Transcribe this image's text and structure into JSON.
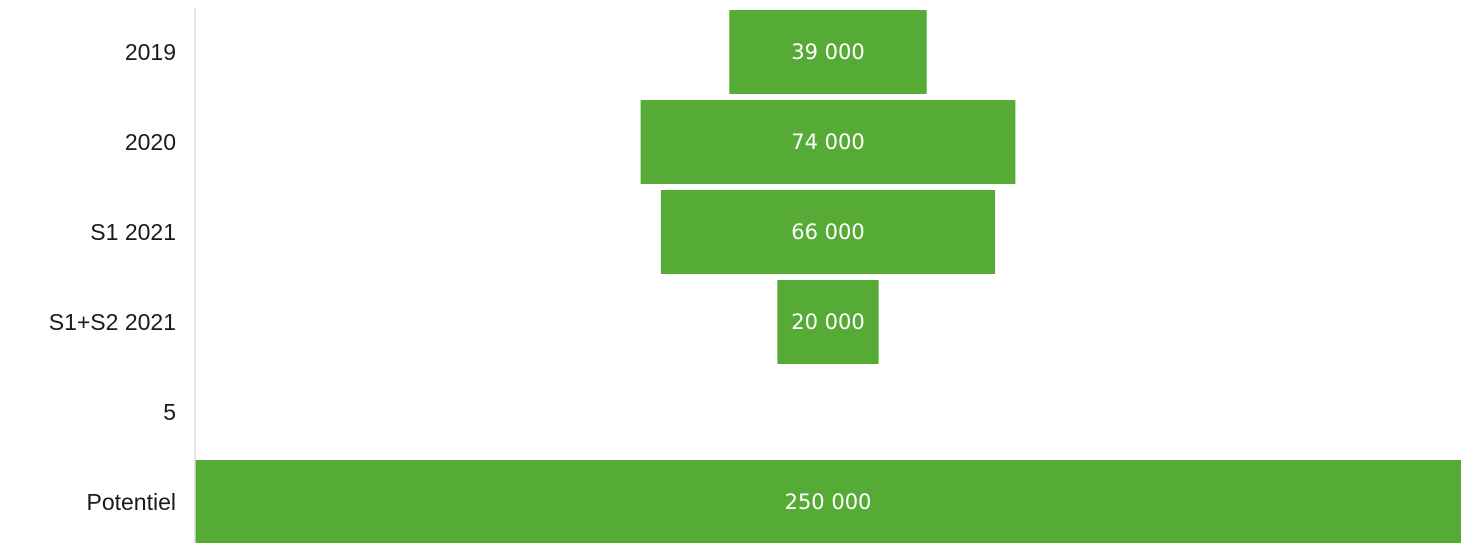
{
  "chart_data": {
    "type": "bar",
    "orientation": "horizontal",
    "layout": "funnel",
    "categories": [
      "2019",
      "2020",
      "S1 2021",
      "S1+S2 2021",
      "5",
      "Potentiel"
    ],
    "values": [
      39000,
      74000,
      66000,
      20000,
      null,
      250000
    ],
    "data_labels": [
      "39 000",
      "74 000",
      "66 000",
      "20 000",
      "",
      "250 000"
    ],
    "bar_color": "#56ab36",
    "axis_color": "#d9d9e6",
    "title": "",
    "xlabel": "",
    "ylabel": "",
    "xlim": [
      0,
      250000
    ],
    "grid": false,
    "legend": "none"
  }
}
